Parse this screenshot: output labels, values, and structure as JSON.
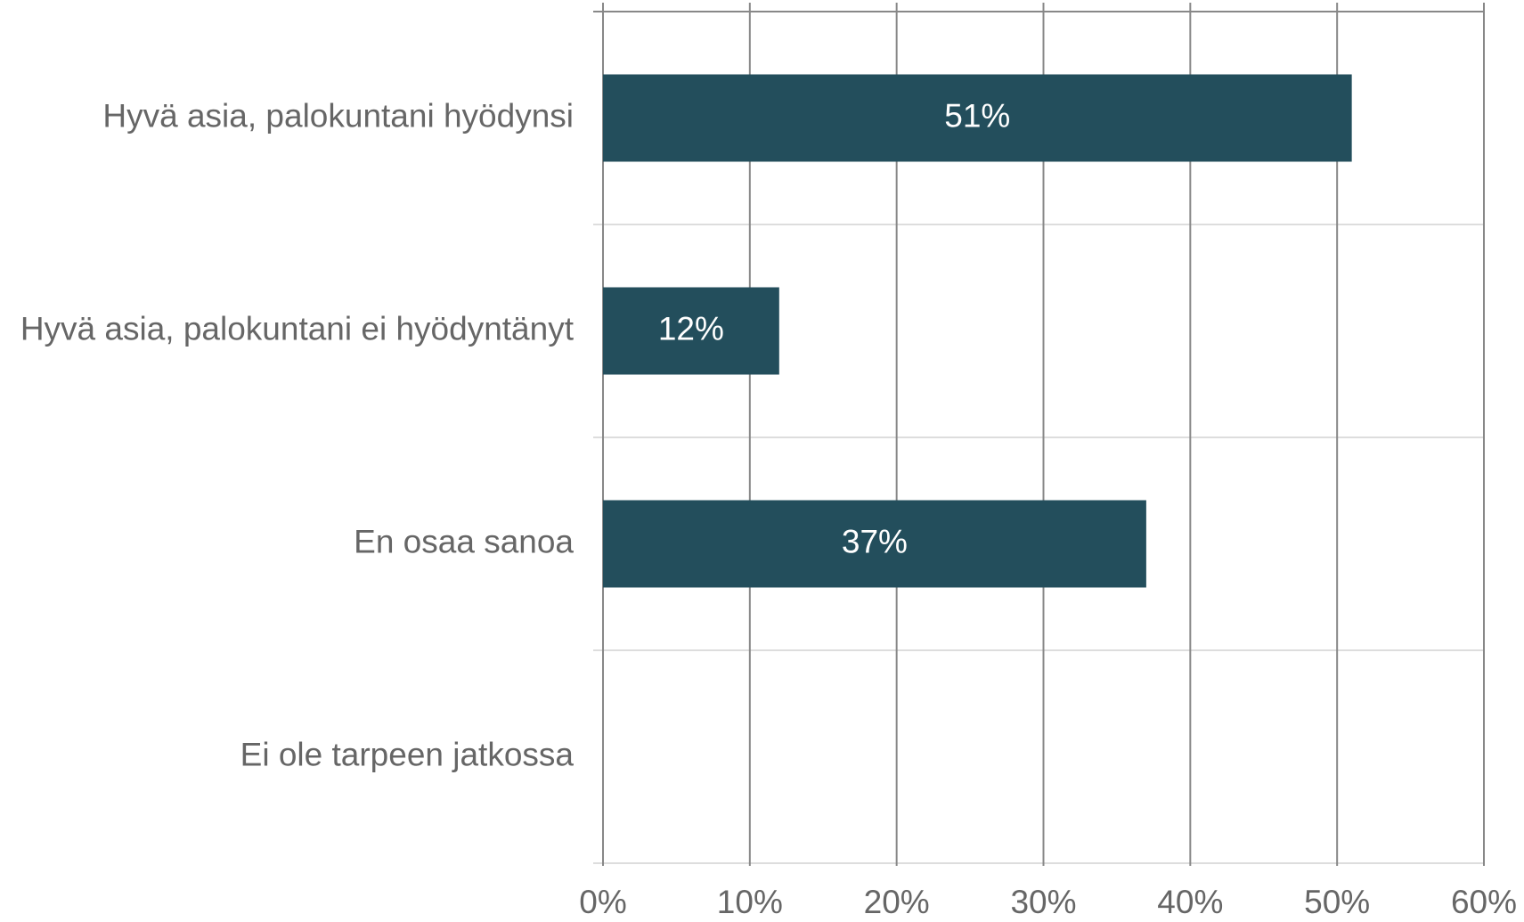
{
  "chart_data": {
    "type": "hbar",
    "categories": [
      "Hyvä asia, palokuntani hyödynsi",
      "Hyvä asia, palokuntani ei hyödyntänyt",
      "En osaa sanoa",
      "Ei ole tarpeen jatkossa"
    ],
    "values": [
      51,
      12,
      37,
      0
    ],
    "value_labels": [
      "51%",
      "12%",
      "37%",
      null
    ],
    "color": "#234e5c",
    "xlim": [
      0,
      60
    ],
    "xticks": [
      {
        "value": 0,
        "label": "0%"
      },
      {
        "value": 10,
        "label": "10%"
      },
      {
        "value": 20,
        "label": "20%"
      },
      {
        "value": 30,
        "label": "30%"
      },
      {
        "value": 40,
        "label": "40%"
      },
      {
        "value": 50,
        "label": "50%"
      },
      {
        "value": 60,
        "label": "60%"
      }
    ],
    "grid": true
  }
}
